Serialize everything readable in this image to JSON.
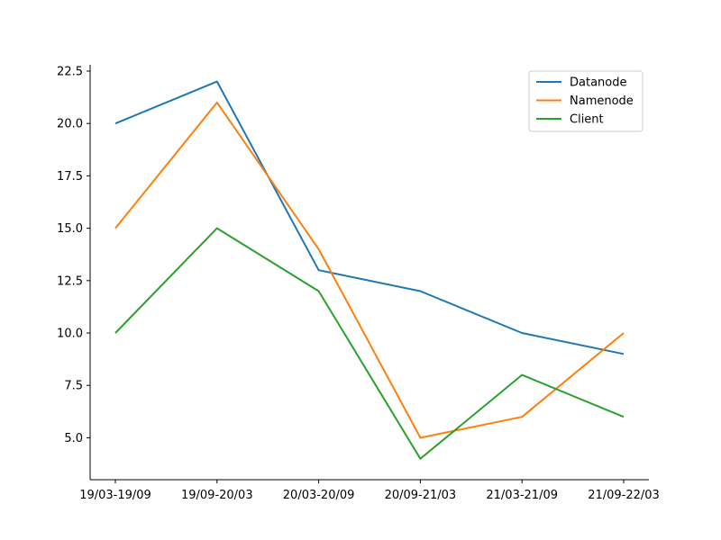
{
  "chart_data": {
    "type": "line",
    "title": "",
    "xlabel": "",
    "ylabel": "",
    "categories": [
      "19/03-19/09",
      "19/09-20/03",
      "20/03-20/09",
      "20/09-21/03",
      "21/03-21/09",
      "21/09-22/03"
    ],
    "ylim": [
      3.0,
      22.8
    ],
    "yticks": [
      5.0,
      7.5,
      10.0,
      12.5,
      15.0,
      17.5,
      20.0,
      22.5
    ],
    "ytick_labels": [
      "5.0",
      "7.5",
      "10.0",
      "12.5",
      "15.0",
      "17.5",
      "20.0",
      "22.5"
    ],
    "grid": false,
    "legend_position": "top-right",
    "series": [
      {
        "name": "Datanode",
        "color": "#1f77b4",
        "values": [
          20,
          22,
          13,
          12,
          10,
          9
        ]
      },
      {
        "name": "Namenode",
        "color": "#ff7f0e",
        "values": [
          15,
          21,
          14,
          5,
          6,
          10
        ]
      },
      {
        "name": "Client",
        "color": "#2ca02c",
        "values": [
          10,
          15,
          12,
          4,
          8,
          6
        ]
      }
    ]
  }
}
